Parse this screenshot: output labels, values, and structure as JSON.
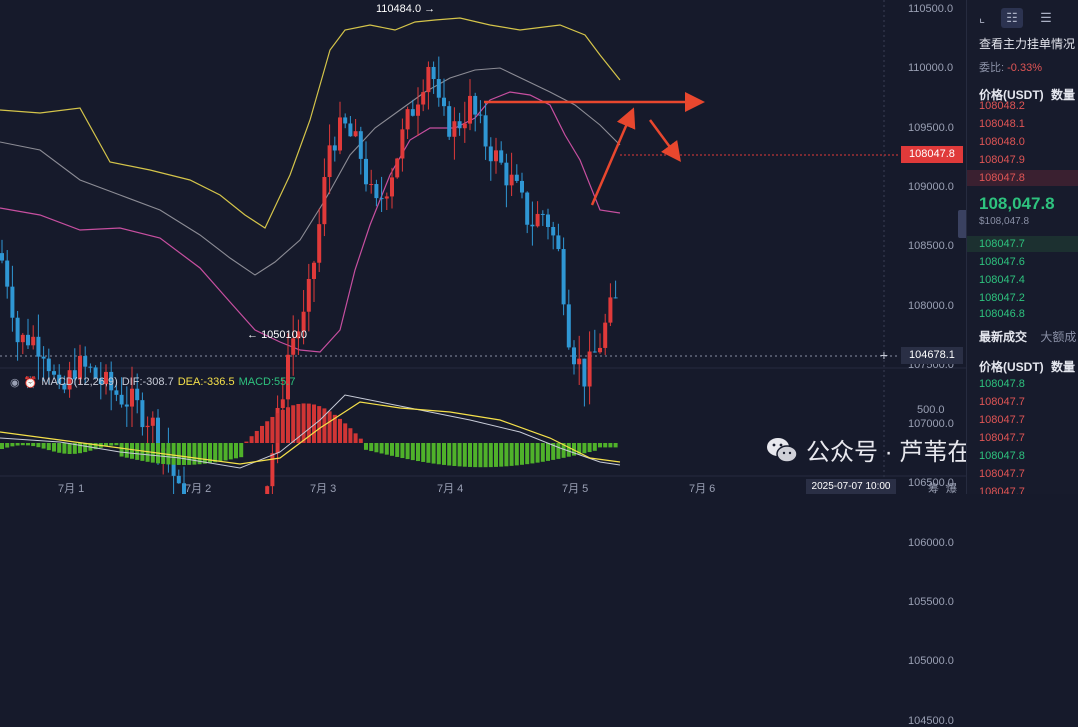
{
  "price_axis": {
    "labels": [
      "110500.0",
      "110000.0",
      "109500.0",
      "109000.0",
      "108500.0",
      "108000.0",
      "107500.0",
      "107000.0",
      "106500.0",
      "106000.0",
      "105500.0",
      "105000.0",
      "104500.0"
    ],
    "current_price": "108047.8",
    "crosshair_price": "104678.1",
    "macd_axis_label": "500.0"
  },
  "time_axis": {
    "labels": [
      "7月 1",
      "7月 2",
      "7月 3",
      "7月 4",
      "7月 5",
      "7月 6"
    ],
    "crosshair_time": "2025-07-07 10:00"
  },
  "extremes": {
    "high": "110484.0",
    "low": "105010.0"
  },
  "macd": {
    "name": "MACD(12,26,9)",
    "dif": "DIF:-308.7",
    "dea": "DEA:-336.5",
    "macd": "MACD:55.7",
    "colors": {
      "dif": "#c8ccd8",
      "dea": "#f5e04a",
      "macd": "#2ec27e"
    }
  },
  "colors": {
    "up": "#e03a3a",
    "down": "#2f97d4",
    "boll_upper": "#d4c44a",
    "boll_mid": "#8c8c95",
    "boll_lower": "#c74fa0",
    "annotation": "#e8472e"
  },
  "side_panel": {
    "title": "查看主力挂单情况",
    "ratio_label": "委比:",
    "ratio_value": "-0.33%",
    "orderbook_header": {
      "price": "价格(USDT)",
      "qty": "数量"
    },
    "asks": [
      "108048.2",
      "108048.1",
      "108048.0",
      "108047.9",
      "108047.8"
    ],
    "last_price": "108,047.8",
    "last_price_usd": "$108,047.8",
    "bids": [
      "108047.7",
      "108047.6",
      "108047.4",
      "108047.2",
      "108046.8"
    ],
    "trades_tab": "最新成交",
    "big_tab": "大额成",
    "trades_header": {
      "price": "价格(USDT)",
      "qty": "数量"
    },
    "trades": [
      {
        "p": "108047.8",
        "side": "buy"
      },
      {
        "p": "108047.7",
        "side": "sell"
      },
      {
        "p": "108047.7",
        "side": "sell"
      },
      {
        "p": "108047.7",
        "side": "sell"
      },
      {
        "p": "108047.8",
        "side": "buy"
      },
      {
        "p": "108047.7",
        "side": "sell"
      },
      {
        "p": "108047.7",
        "side": "sell"
      }
    ]
  },
  "watermark": {
    "text": "公众号 · 芦苇在说"
  },
  "bottom_tabs": {
    "a": "筹",
    "b": "爆"
  }
}
